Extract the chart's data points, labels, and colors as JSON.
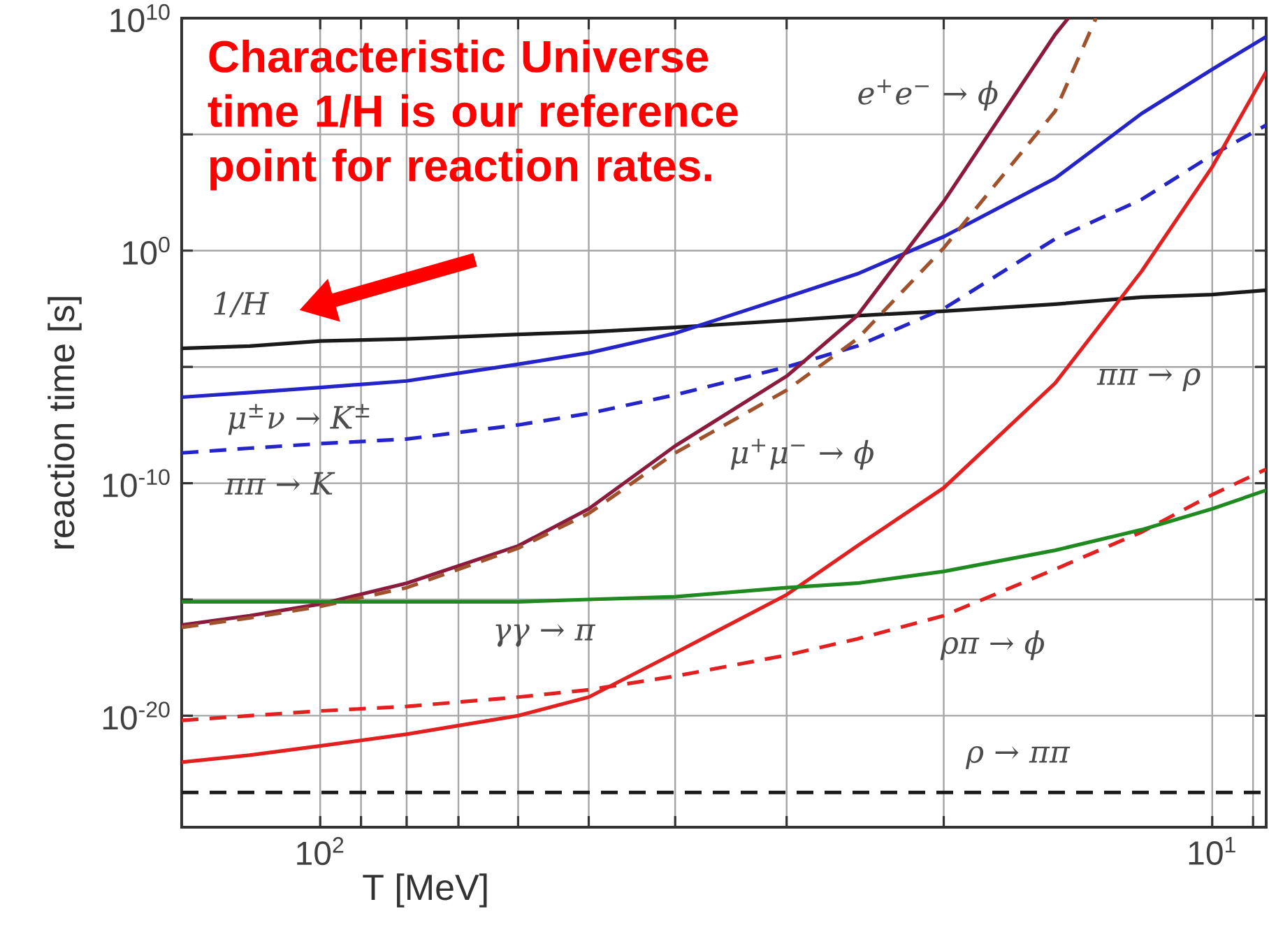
{
  "chart_data": {
    "type": "line",
    "xlabel": "T [MeV]",
    "ylabel": "reaction time [s]",
    "annotations": [
      "Characteristic Universe time 1/H is our reference point for reaction rates."
    ],
    "log": "xy",
    "grid": true,
    "marker": "none",
    "xlim": [
      143,
      8.7
    ],
    "ylim": [
      1.6e-25,
      10000000000.0
    ],
    "xticks": [
      {
        "value": 100,
        "label": "10$^{2}$"
      },
      {
        "value": 90,
        "label": null
      },
      {
        "value": 80,
        "label": null
      },
      {
        "value": 70,
        "label": null
      },
      {
        "value": 60,
        "label": null
      },
      {
        "value": 50,
        "label": null
      },
      {
        "value": 40,
        "label": null
      },
      {
        "value": 30,
        "label": null
      },
      {
        "value": 20,
        "label": null
      },
      {
        "value": 10,
        "label": "10$^{1}$"
      },
      {
        "value": 9,
        "label": null
      }
    ],
    "yticks": [
      {
        "value": 10000000000.0,
        "label": "10$^{10}$"
      },
      {
        "value": 100000.0,
        "label": null
      },
      {
        "value": 1,
        "label": "10$^{0}$"
      },
      {
        "value": 1e-05,
        "label": null
      },
      {
        "value": 1e-10,
        "label": "10$^{-10}$"
      },
      {
        "value": 1e-15,
        "label": null
      },
      {
        "value": 1e-20,
        "label": "10$^{-20}$"
      }
    ],
    "x": [
      143,
      120,
      100,
      80,
      60,
      50,
      40,
      30,
      25,
      20,
      15,
      12,
      10,
      8.7
    ],
    "series": [
      {
        "name": "1/H",
        "color": "#1a1a1a",
        "values": [
          6.3e-05,
          7.9e-05,
          0.00013,
          0.00016,
          0.00025,
          0.00032,
          0.0005,
          0.001,
          0.0016,
          0.0025,
          0.005,
          0.01,
          0.013,
          0.02
        ]
      },
      {
        "name": "μ$^{±}$ν → K$^{±}$",
        "color": "#2424c8",
        "values": [
          5e-07,
          7.9e-07,
          1.3e-06,
          2.5e-06,
          1.3e-05,
          4e-05,
          0.00028,
          0.01,
          0.1,
          4,
          1300.0,
          790000.0,
          63000000.0,
          1600000000.0
        ]
      },
      {
        "name": "ππ → K",
        "color": "#2424c8",
        "line_style": "dashed",
        "values": [
          2e-09,
          3.2e-09,
          5e-09,
          7.9e-09,
          3.2e-08,
          1e-07,
          6.3e-07,
          1e-05,
          7.9e-05,
          0.0032,
          3.2,
          160,
          13000.0,
          250000.0
        ]
      },
      {
        "name": "e$^{+}$e$^{−}$ → ϕ",
        "color": "#8b1a3c",
        "x": [
          143,
          120,
          100,
          80,
          60,
          50,
          40,
          30,
          25,
          20,
          15,
          14.5
        ],
        "values": [
          7.9e-17,
          2e-16,
          6.3e-16,
          5e-15,
          2e-13,
          7.9e-12,
          4e-09,
          4e-06,
          0.0016,
          130,
          2000000000.0,
          10000000000.0
        ]
      },
      {
        "name": "μ$^{+}$μ$^{−}$ → ϕ",
        "color": "#a0522d",
        "line_style": "dashed",
        "x": [
          143,
          120,
          100,
          80,
          60,
          50,
          40,
          30,
          25,
          20,
          15,
          13.5
        ],
        "values": [
          6.3e-17,
          1.6e-16,
          5e-16,
          3.2e-15,
          1.6e-13,
          5e-12,
          2e-09,
          1e-06,
          0.00016,
          1.3,
          1000000.0,
          10000000000.0
        ]
      },
      {
        "name": "ππ → ρ",
        "color": "#e32020",
        "values": [
          1e-22,
          2e-22,
          5e-22,
          1.6e-21,
          1e-20,
          6.3e-20,
          5e-18,
          1.6e-15,
          2e-13,
          6.3e-11,
          2e-06,
          0.13,
          4000.0,
          50000000.0
        ]
      },
      {
        "name": "ρπ → ϕ",
        "color": "#e32020",
        "line_style": "dashed",
        "values": [
          6.3e-21,
          1e-20,
          1.6e-20,
          2.5e-20,
          6.3e-20,
          1.3e-19,
          5e-19,
          4e-18,
          2e-17,
          2e-16,
          2e-14,
          7.9e-13,
          3.2e-11,
          4e-10
        ]
      },
      {
        "name": "γγ → π",
        "color": "#1f8a1f",
        "values": [
          7.9e-16,
          7.9e-16,
          7.9e-16,
          7.9e-16,
          7.9e-16,
          1e-15,
          1.3e-15,
          3.2e-15,
          5e-15,
          1.6e-14,
          1.3e-13,
          1e-12,
          7.9e-12,
          5e-11
        ]
      },
      {
        "name": "ρ → ππ",
        "color": "#1a1a1a",
        "line_style": "dashed",
        "x": [
          143,
          8.7
        ],
        "values": [
          5e-24,
          5e-24
        ]
      }
    ]
  }
}
